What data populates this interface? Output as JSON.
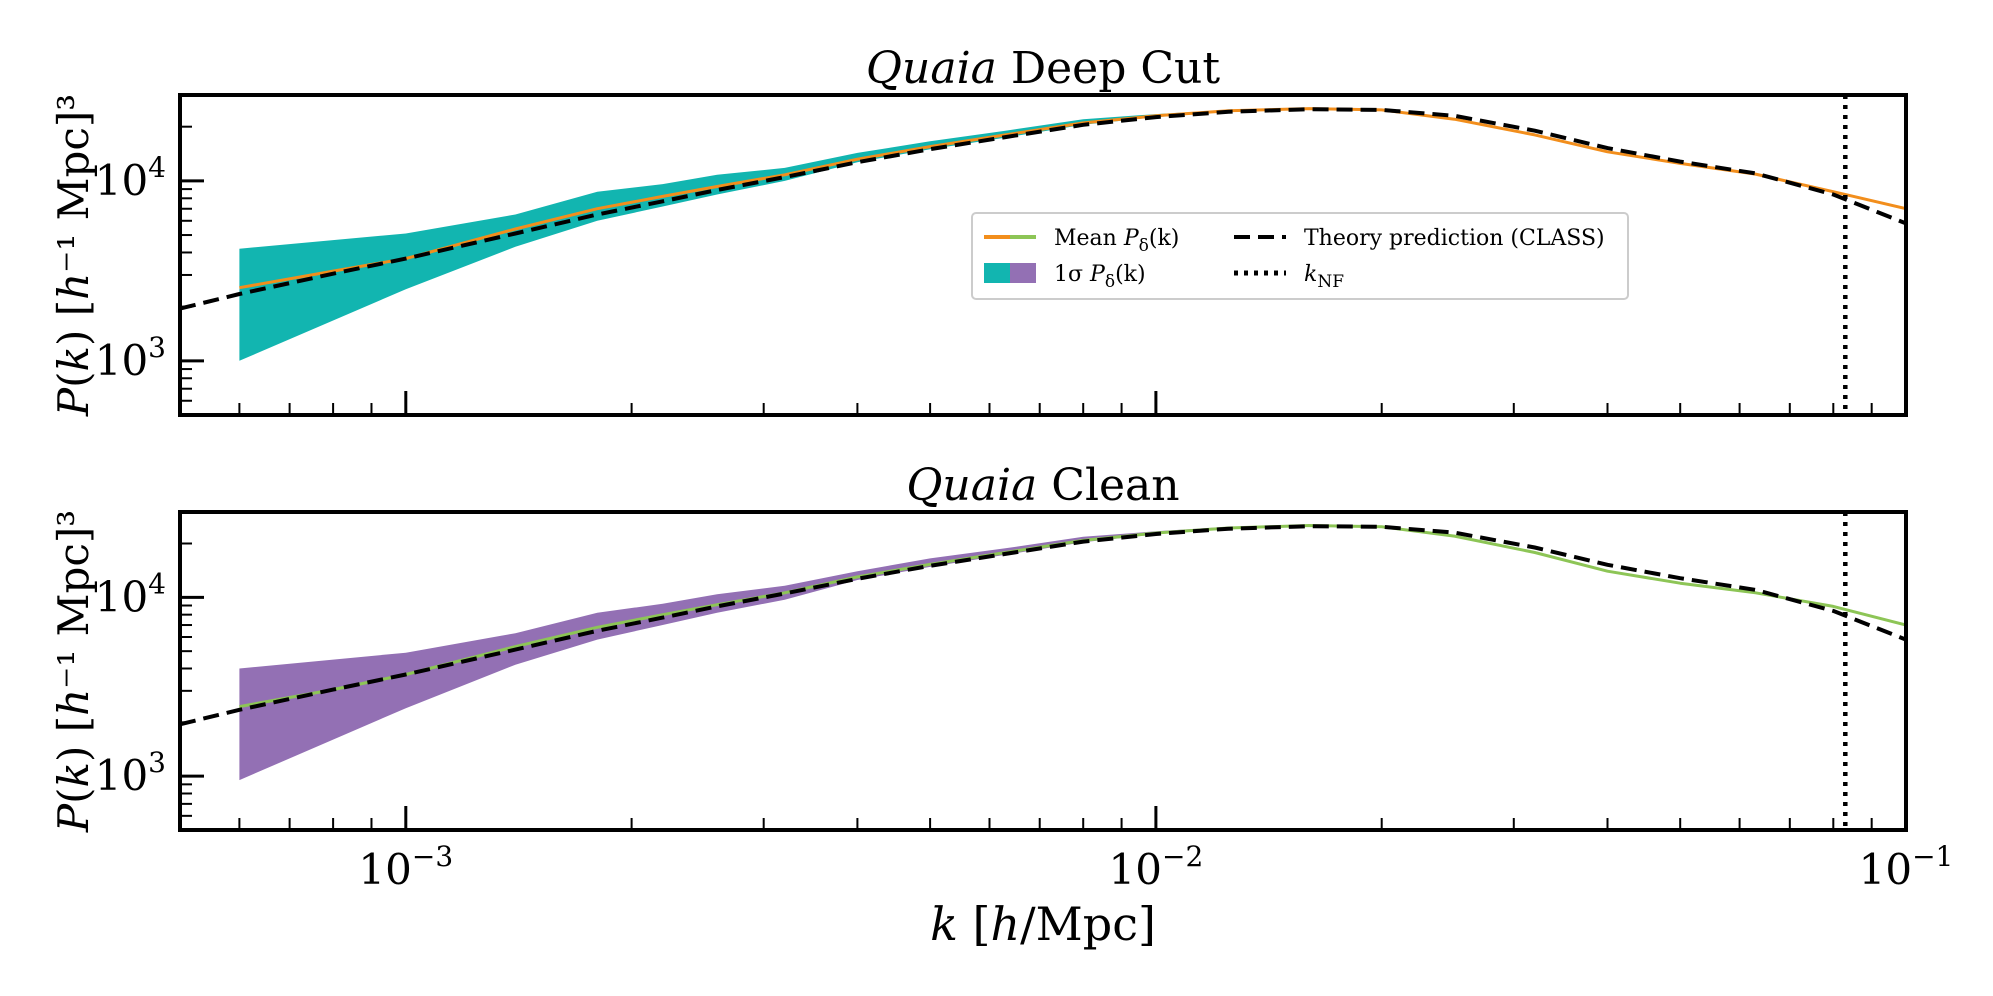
{
  "chart_data": [
    {
      "type": "line",
      "title_italic": "Quaia",
      "title_rest": " Deep Cut",
      "xscale": "log",
      "yscale": "log",
      "xlim": [
        0.0005,
        0.1
      ],
      "ylim": [
        500,
        30000
      ],
      "yticks": [
        {
          "value": 1000,
          "base": "10",
          "exp": "3"
        },
        {
          "value": 10000,
          "base": "10",
          "exp": "4"
        }
      ],
      "ylabel": "P(k) [h⁻¹ Mpc]³",
      "band_color": "#12b5b0",
      "line_color": "#f28e1c",
      "mean": {
        "x": [
          0.0006,
          0.0008,
          0.001,
          0.0014,
          0.0018,
          0.0022,
          0.0026,
          0.0032,
          0.004,
          0.005,
          0.0063,
          0.008,
          0.01,
          0.0125,
          0.016,
          0.02,
          0.025,
          0.032,
          0.04,
          0.05,
          0.063,
          0.08,
          0.1
        ],
        "y": [
          2550,
          3150,
          3700,
          5400,
          7000,
          8200,
          9300,
          10800,
          13200,
          15500,
          18000,
          21000,
          23000,
          24500,
          25200,
          24800,
          22000,
          18000,
          14500,
          12500,
          10900,
          8700,
          7000
        ]
      },
      "band": {
        "x": [
          0.0006,
          0.001,
          0.0014,
          0.0018,
          0.0022,
          0.0026,
          0.0032,
          0.004,
          0.005,
          0.0063,
          0.008,
          0.01,
          0.0125,
          0.016
        ],
        "upper": [
          4200,
          5100,
          6500,
          8700,
          9600,
          10800,
          11800,
          14300,
          16600,
          19000,
          22000,
          23500,
          24800,
          25400
        ],
        "lower": [
          1000,
          2500,
          4300,
          6000,
          7200,
          8400,
          10000,
          12700,
          15000,
          17400,
          20500,
          22600,
          24200,
          25100
        ]
      },
      "theory": {
        "x": [
          0.0005,
          0.0006,
          0.0008,
          0.001,
          0.0014,
          0.0018,
          0.0022,
          0.0026,
          0.0032,
          0.004,
          0.005,
          0.0063,
          0.008,
          0.01,
          0.0125,
          0.016,
          0.02,
          0.025,
          0.032,
          0.04,
          0.05,
          0.063,
          0.08,
          0.1
        ],
        "y": [
          1950,
          2350,
          3050,
          3700,
          5100,
          6500,
          7700,
          8900,
          10500,
          12700,
          15000,
          17500,
          20500,
          22600,
          24200,
          25000,
          24800,
          23000,
          19000,
          15200,
          12800,
          11000,
          8400,
          5800
        ]
      },
      "knf": 0.083
    },
    {
      "type": "line",
      "title_italic": "Quaia",
      "title_rest": " Clean",
      "xscale": "log",
      "yscale": "log",
      "xlim": [
        0.0005,
        0.1
      ],
      "ylim": [
        500,
        30000
      ],
      "yticks": [
        {
          "value": 1000,
          "base": "10",
          "exp": "3"
        },
        {
          "value": 10000,
          "base": "10",
          "exp": "4"
        }
      ],
      "ylabel": "P(k) [h⁻¹ Mpc]³",
      "band_color": "#9370b4",
      "line_color": "#8dc556",
      "mean": {
        "x": [
          0.0006,
          0.0008,
          0.001,
          0.0014,
          0.0018,
          0.0022,
          0.0026,
          0.0032,
          0.004,
          0.005,
          0.0063,
          0.008,
          0.01,
          0.0125,
          0.016,
          0.02,
          0.025,
          0.032,
          0.04,
          0.05,
          0.063,
          0.08,
          0.1
        ],
        "y": [
          2450,
          3050,
          3700,
          5300,
          6800,
          8000,
          9100,
          10600,
          13000,
          15300,
          17800,
          20800,
          22900,
          24400,
          25200,
          24800,
          22000,
          17800,
          14000,
          12000,
          10600,
          8900,
          7000
        ]
      },
      "band": {
        "x": [
          0.0006,
          0.001,
          0.0014,
          0.0018,
          0.0022,
          0.0026,
          0.0032,
          0.004,
          0.005,
          0.0063,
          0.008,
          0.01,
          0.0125,
          0.016
        ],
        "upper": [
          4000,
          4900,
          6300,
          8200,
          9200,
          10400,
          11600,
          14000,
          16500,
          18800,
          21800,
          23400,
          24800,
          25400
        ],
        "lower": [
          950,
          2400,
          4200,
          5800,
          7000,
          8200,
          9700,
          12500,
          14800,
          17300,
          20300,
          22500,
          24200,
          25100
        ]
      },
      "theory": {
        "x": [
          0.0005,
          0.0006,
          0.0008,
          0.001,
          0.0014,
          0.0018,
          0.0022,
          0.0026,
          0.0032,
          0.004,
          0.005,
          0.0063,
          0.008,
          0.01,
          0.0125,
          0.016,
          0.02,
          0.025,
          0.032,
          0.04,
          0.05,
          0.063,
          0.08,
          0.1
        ],
        "y": [
          1950,
          2350,
          3050,
          3700,
          5100,
          6500,
          7700,
          8900,
          10500,
          12700,
          15000,
          17500,
          20500,
          22600,
          24200,
          25000,
          24800,
          23000,
          19000,
          15200,
          12800,
          11000,
          8400,
          5800
        ]
      },
      "knf": 0.083
    }
  ],
  "xaxis": {
    "label": "k [h/Mpc]",
    "ticks": [
      {
        "value": 0.001,
        "base": "10",
        "exp": "−3"
      },
      {
        "value": 0.01,
        "base": "10",
        "exp": "−2"
      },
      {
        "value": 0.1,
        "base": "10",
        "exp": "−1"
      }
    ]
  },
  "legend": {
    "placement": "upper-center (top panel)",
    "entries": [
      {
        "label": "Mean P_δ(k)",
        "kind": "mean"
      },
      {
        "label": "Theory prediction (CLASS)",
        "kind": "theory"
      },
      {
        "label": "1σ P_δ(k)",
        "kind": "band"
      },
      {
        "label": "k_NF",
        "kind": "knf"
      }
    ]
  }
}
